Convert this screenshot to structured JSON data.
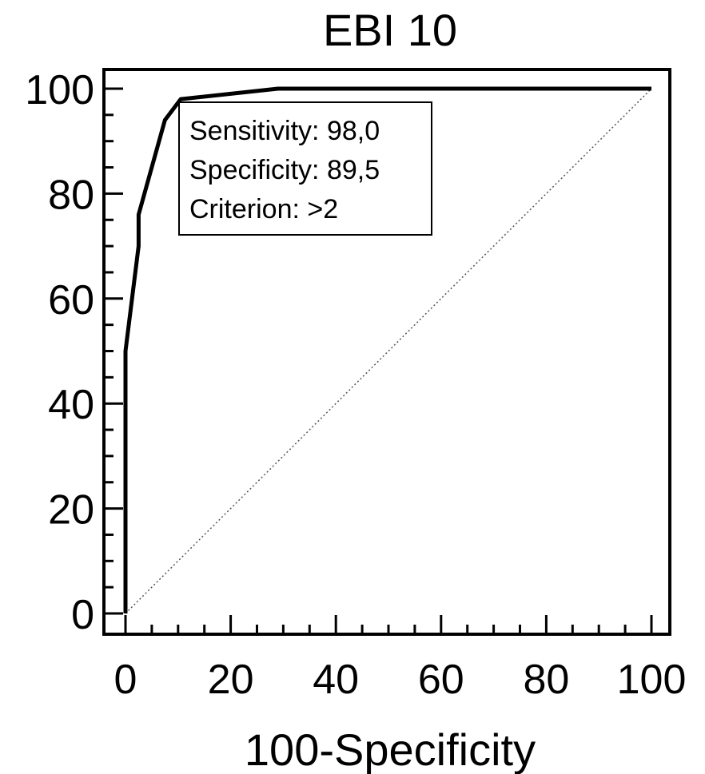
{
  "chart_data": {
    "type": "line",
    "title": "EBI 10",
    "xlabel": "100-Specificity",
    "ylabel": "",
    "xlim": [
      0,
      100
    ],
    "ylim": [
      0,
      100
    ],
    "x_ticks": [
      "0",
      "20",
      "40",
      "60",
      "80",
      "100"
    ],
    "y_ticks": [
      "0",
      "20",
      "40",
      "60",
      "80",
      "100"
    ],
    "grid": false,
    "series": [
      {
        "x": [
          0,
          0,
          2.5,
          2.5,
          7.5,
          10.5,
          29,
          100
        ],
        "y": [
          0,
          50,
          70,
          76,
          94,
          98,
          100,
          100
        ],
        "color": "#000000",
        "style": "solid"
      },
      {
        "x": [
          0,
          100
        ],
        "y": [
          0,
          100
        ],
        "color": "#555555",
        "style": "dotted"
      }
    ],
    "annotation": {
      "lines": [
        "Sensitivity: 98,0",
        "Specificity: 89,5",
        "Criterion: >2"
      ],
      "placement": "top-left"
    }
  }
}
